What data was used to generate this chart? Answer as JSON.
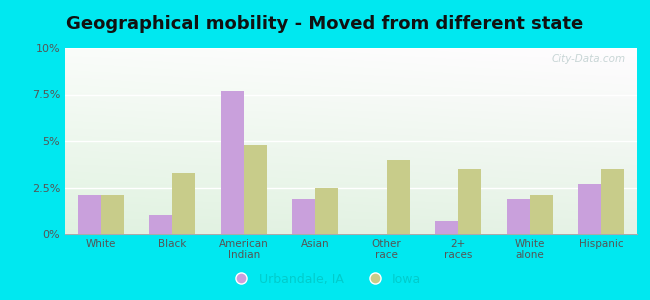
{
  "title": "Geographical mobility - Moved from different state",
  "categories": [
    "White",
    "Black",
    "American\nIndian",
    "Asian",
    "Other\nrace",
    "2+\nraces",
    "White\nalone",
    "Hispanic"
  ],
  "urbandale": [
    2.1,
    1.0,
    7.7,
    1.9,
    0.0,
    0.7,
    1.9,
    2.7
  ],
  "iowa": [
    2.1,
    3.3,
    4.8,
    2.5,
    4.0,
    3.5,
    2.1,
    3.5
  ],
  "urbandale_color": "#c9a0dc",
  "iowa_color": "#c8cc8a",
  "ylim": [
    0,
    10
  ],
  "yticks": [
    0,
    2.5,
    5.0,
    7.5,
    10.0
  ],
  "ytick_labels": [
    "0%",
    "2.5%",
    "5%",
    "7.5%",
    "10%"
  ],
  "legend_urbandale": "Urbandale, IA",
  "legend_iowa": "Iowa",
  "outer_bg": "#00e8f0",
  "title_fontsize": 13,
  "bar_width": 0.32,
  "watermark": "City-Data.com"
}
